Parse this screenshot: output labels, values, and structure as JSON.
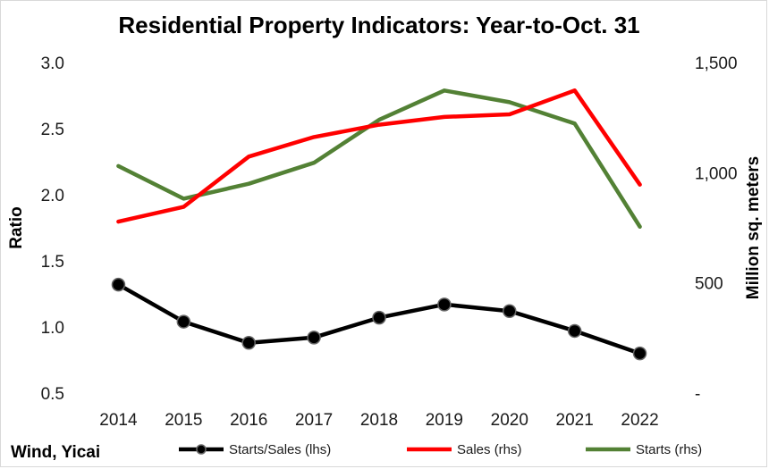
{
  "chart_data": {
    "type": "line",
    "title": "Residential Property Indicators: Year-to-Oct. 31",
    "ylabel_left": "Ratio",
    "ylabel_right": "Million sq. meters",
    "source": "Wind, Yicai",
    "categories": [
      "2014",
      "2015",
      "2016",
      "2017",
      "2018",
      "2019",
      "2020",
      "2021",
      "2022"
    ],
    "left_axis": {
      "min": 0.5,
      "max": 3.0,
      "ticks": [
        "0.5",
        "1.0",
        "1.5",
        "2.0",
        "2.5",
        "3.0"
      ]
    },
    "right_axis": {
      "min": 0,
      "max": 1500,
      "ticks": [
        "-",
        "500",
        "1,000",
        "1,500"
      ],
      "tick_values": [
        0,
        500,
        1000,
        1500
      ]
    },
    "grid": false,
    "legend_position": "bottom",
    "series": [
      {
        "name": "Starts/Sales (lhs)",
        "axis": "left",
        "color": "#000000",
        "markers": true,
        "values": [
          1.32,
          1.04,
          0.88,
          0.92,
          1.07,
          1.17,
          1.12,
          0.97,
          0.8
        ]
      },
      {
        "name": "Sales (rhs)",
        "axis": "right",
        "color": "#ff0000",
        "markers": false,
        "values": [
          778,
          845,
          1073,
          1162,
          1218,
          1253,
          1265,
          1373,
          946
        ]
      },
      {
        "name": "Starts (rhs)",
        "axis": "right",
        "color": "#538135",
        "markers": false,
        "values": [
          1030,
          882,
          950,
          1045,
          1240,
          1373,
          1320,
          1223,
          755
        ]
      }
    ]
  }
}
